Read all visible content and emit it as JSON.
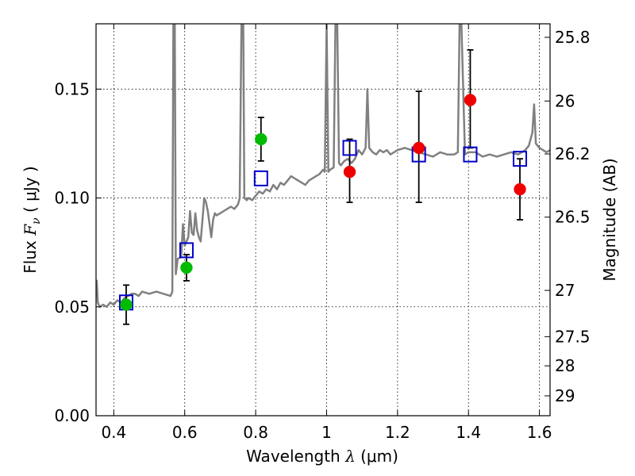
{
  "chart_data": {
    "type": "scatter",
    "xlabel": "Wavelength",
    "xlabel_symbol": "λ",
    "xlabel_unit": "(μm)",
    "ylabel": "Flux",
    "ylabel_symbol": "F",
    "ylabel_subscript": "ν",
    "ylabel_unit": "( μJy )",
    "y2label": "Magnitude (AB)",
    "xlim": [
      0.35,
      1.63
    ],
    "ylim": [
      0.0,
      0.18
    ],
    "grid": true,
    "x_ticks": [
      0.4,
      0.6,
      0.8,
      1.0,
      1.2,
      1.4,
      1.6
    ],
    "x_tick_labels": [
      "0.4",
      "0.6",
      "0.8",
      "1",
      "1.2",
      "1.4",
      "1.6"
    ],
    "y_ticks": [
      0.0,
      0.05,
      0.1,
      0.15
    ],
    "y_tick_labels": [
      "0.00",
      "0.05",
      "0.10",
      "0.15"
    ],
    "y2_ticks": [
      25.8,
      26,
      26.2,
      26.5,
      27,
      27.5,
      28,
      29
    ],
    "y2_tick_labels": [
      "25.8",
      "26",
      "26.2",
      "26.5",
      "27",
      "27.5",
      "28",
      "29"
    ],
    "colors": {
      "spectrum": "#808080",
      "model_photometry": "#0000cc",
      "observed_optical": "#00bb00",
      "observed_nir": "#ee0000",
      "errorbar": "#000000"
    },
    "series": [
      {
        "marker": "line",
        "points": [
          [
            0.35,
            0.055
          ],
          [
            0.352,
            0.062
          ],
          [
            0.355,
            0.052
          ],
          [
            0.36,
            0.05
          ],
          [
            0.37,
            0.051
          ],
          [
            0.38,
            0.05
          ],
          [
            0.39,
            0.052
          ],
          [
            0.4,
            0.051
          ],
          [
            0.41,
            0.053
          ],
          [
            0.42,
            0.052
          ],
          [
            0.43,
            0.054
          ],
          [
            0.44,
            0.055
          ],
          [
            0.45,
            0.056
          ],
          [
            0.46,
            0.056
          ],
          [
            0.47,
            0.055
          ],
          [
            0.48,
            0.057
          ],
          [
            0.5,
            0.056
          ],
          [
            0.52,
            0.057
          ],
          [
            0.54,
            0.056
          ],
          [
            0.56,
            0.055
          ],
          [
            0.565,
            0.057
          ],
          [
            0.568,
            0.18
          ],
          [
            0.572,
            0.18
          ],
          [
            0.575,
            0.065
          ],
          [
            0.58,
            0.072
          ],
          [
            0.59,
            0.073
          ],
          [
            0.595,
            0.088
          ],
          [
            0.6,
            0.078
          ],
          [
            0.605,
            0.08
          ],
          [
            0.61,
            0.082
          ],
          [
            0.615,
            0.094
          ],
          [
            0.62,
            0.084
          ],
          [
            0.625,
            0.083
          ],
          [
            0.63,
            0.093
          ],
          [
            0.635,
            0.085
          ],
          [
            0.64,
            0.082
          ],
          [
            0.645,
            0.08
          ],
          [
            0.65,
            0.09
          ],
          [
            0.655,
            0.1
          ],
          [
            0.66,
            0.098
          ],
          [
            0.665,
            0.094
          ],
          [
            0.67,
            0.088
          ],
          [
            0.675,
            0.082
          ],
          [
            0.68,
            0.09
          ],
          [
            0.685,
            0.093
          ],
          [
            0.69,
            0.092
          ],
          [
            0.7,
            0.093
          ],
          [
            0.71,
            0.094
          ],
          [
            0.72,
            0.095
          ],
          [
            0.73,
            0.096
          ],
          [
            0.74,
            0.095
          ],
          [
            0.75,
            0.097
          ],
          [
            0.755,
            0.1
          ],
          [
            0.76,
            0.18
          ],
          [
            0.765,
            0.18
          ],
          [
            0.768,
            0.1
          ],
          [
            0.775,
            0.099
          ],
          [
            0.78,
            0.1
          ],
          [
            0.79,
            0.099
          ],
          [
            0.8,
            0.101
          ],
          [
            0.81,
            0.103
          ],
          [
            0.82,
            0.102
          ],
          [
            0.83,
            0.104
          ],
          [
            0.84,
            0.103
          ],
          [
            0.85,
            0.106
          ],
          [
            0.86,
            0.104
          ],
          [
            0.87,
            0.107
          ],
          [
            0.88,
            0.106
          ],
          [
            0.89,
            0.108
          ],
          [
            0.9,
            0.11
          ],
          [
            0.91,
            0.109
          ],
          [
            0.92,
            0.108
          ],
          [
            0.93,
            0.107
          ],
          [
            0.94,
            0.106
          ],
          [
            0.95,
            0.108
          ],
          [
            0.96,
            0.109
          ],
          [
            0.97,
            0.11
          ],
          [
            0.98,
            0.111
          ],
          [
            0.99,
            0.113
          ],
          [
            0.995,
            0.112
          ],
          [
            1.0,
            0.18
          ],
          [
            1.005,
            0.112
          ],
          [
            1.01,
            0.113
          ],
          [
            1.02,
            0.114
          ],
          [
            1.025,
            0.18
          ],
          [
            1.03,
            0.18
          ],
          [
            1.035,
            0.116
          ],
          [
            1.04,
            0.115
          ],
          [
            1.05,
            0.117
          ],
          [
            1.06,
            0.118
          ],
          [
            1.07,
            0.116
          ],
          [
            1.08,
            0.118
          ],
          [
            1.09,
            0.122
          ],
          [
            1.1,
            0.12
          ],
          [
            1.11,
            0.123
          ],
          [
            1.115,
            0.15
          ],
          [
            1.12,
            0.123
          ],
          [
            1.13,
            0.121
          ],
          [
            1.14,
            0.12
          ],
          [
            1.15,
            0.122
          ],
          [
            1.16,
            0.121
          ],
          [
            1.17,
            0.122
          ],
          [
            1.18,
            0.12
          ],
          [
            1.19,
            0.121
          ],
          [
            1.2,
            0.122
          ],
          [
            1.22,
            0.123
          ],
          [
            1.24,
            0.122
          ],
          [
            1.26,
            0.121
          ],
          [
            1.28,
            0.12
          ],
          [
            1.3,
            0.119
          ],
          [
            1.32,
            0.121
          ],
          [
            1.34,
            0.12
          ],
          [
            1.36,
            0.12
          ],
          [
            1.37,
            0.121
          ],
          [
            1.375,
            0.18
          ],
          [
            1.38,
            0.18
          ],
          [
            1.39,
            0.12
          ],
          [
            1.4,
            0.121
          ],
          [
            1.42,
            0.121
          ],
          [
            1.44,
            0.119
          ],
          [
            1.46,
            0.12
          ],
          [
            1.48,
            0.119
          ],
          [
            1.5,
            0.12
          ],
          [
            1.52,
            0.121
          ],
          [
            1.54,
            0.12
          ],
          [
            1.56,
            0.122
          ],
          [
            1.57,
            0.124
          ],
          [
            1.58,
            0.13
          ],
          [
            1.585,
            0.143
          ],
          [
            1.59,
            0.125
          ],
          [
            1.6,
            0.123
          ],
          [
            1.61,
            0.122
          ],
          [
            1.62,
            0.121
          ],
          [
            1.63,
            0.122
          ]
        ]
      },
      {
        "marker": "open-square",
        "points": [
          [
            0.435,
            0.052
          ],
          [
            0.605,
            0.076
          ],
          [
            0.815,
            0.109
          ],
          [
            1.065,
            0.123
          ],
          [
            1.26,
            0.12
          ],
          [
            1.405,
            0.12
          ],
          [
            1.545,
            0.118
          ]
        ]
      },
      {
        "marker": "filled-circle",
        "points": [
          {
            "x": 0.435,
            "y": 0.051,
            "err": [
              0.042,
              0.06
            ]
          },
          {
            "x": 0.605,
            "y": 0.068,
            "err": [
              0.062,
              0.074
            ]
          },
          {
            "x": 0.815,
            "y": 0.127,
            "err": [
              0.117,
              0.137
            ]
          }
        ]
      },
      {
        "marker": "filled-circle",
        "points": [
          {
            "x": 1.065,
            "y": 0.112,
            "err": [
              0.098,
              0.127
            ]
          },
          {
            "x": 1.26,
            "y": 0.123,
            "err": [
              0.098,
              0.149
            ]
          },
          {
            "x": 1.405,
            "y": 0.145,
            "err": [
              0.123,
              0.168
            ]
          },
          {
            "x": 1.545,
            "y": 0.104,
            "err": [
              0.09,
              0.118
            ]
          }
        ]
      }
    ]
  }
}
